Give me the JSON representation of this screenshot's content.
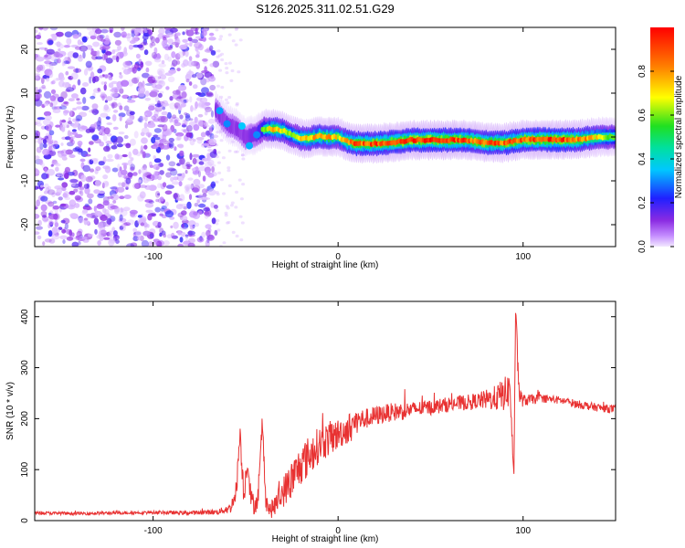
{
  "figure_title": "S126.2025.311.02.51.G29",
  "chart_data": [
    {
      "type": "heatmap",
      "title": "S126.2025.311.02.51.G29",
      "xlabel": "Height of straight line (km)",
      "ylabel": "Frequency (Hz)",
      "xlim": [
        -164,
        150
      ],
      "ylim": [
        -25,
        25
      ],
      "xticks": [
        -100,
        0,
        100
      ],
      "yticks": [
        -20,
        -10,
        0,
        10,
        20
      ],
      "colorbar": {
        "label": "Normalized spectral amplitude",
        "range": [
          0.0,
          1.0
        ],
        "ticks": [
          0.0,
          0.2,
          0.4,
          0.6,
          0.8
        ],
        "tick_labels": [
          "0.0",
          "0.2",
          "0.4",
          "0.6",
          "0.8"
        ],
        "colormap": "rainbow"
      },
      "noise_region_x": [
        -164,
        -66
      ],
      "ridge": {
        "x": [
          -66,
          -60,
          -55,
          -50,
          -45,
          -40,
          -35,
          -30,
          -25,
          -20,
          -15,
          -10,
          -5,
          0,
          5,
          10,
          20,
          30,
          40,
          50,
          60,
          70,
          80,
          90,
          100,
          110,
          120,
          130,
          140,
          150
        ],
        "freq": [
          6,
          3,
          2,
          0,
          0.5,
          1.8,
          1.8,
          1.5,
          0.5,
          -0.3,
          -0.3,
          0.2,
          0,
          0,
          -1,
          -1.5,
          -1.5,
          -1.2,
          -0.7,
          -0.7,
          -0.7,
          -0.7,
          -1.3,
          -1.3,
          -0.6,
          -0.6,
          -0.6,
          -0.6,
          0,
          0
        ],
        "amplitude": [
          0.3,
          0.3,
          0.3,
          0.3,
          0.35,
          0.6,
          0.8,
          0.7,
          0.6,
          0.7,
          0.75,
          0.8,
          0.8,
          0.7,
          0.8,
          0.9,
          0.9,
          0.9,
          0.95,
          0.95,
          0.95,
          0.9,
          0.9,
          0.9,
          0.9,
          0.95,
          0.95,
          0.85,
          0.7,
          0.6
        ]
      }
    },
    {
      "type": "line",
      "xlabel": "Height of straight line (km)",
      "ylabel": "SNR (10 * v/v)",
      "xlim": [
        -164,
        150
      ],
      "ylim": [
        0,
        430
      ],
      "xticks": [
        -100,
        0,
        100
      ],
      "yticks": [
        0,
        100,
        200,
        300,
        400
      ],
      "color": "#e83232",
      "series": [
        {
          "name": "SNR",
          "x": [
            -164,
            -140,
            -120,
            -100,
            -80,
            -65,
            -58,
            -55,
            -53,
            -51,
            -49,
            -47,
            -45,
            -43,
            -41,
            -39,
            -37,
            -35,
            -30,
            -25,
            -20,
            -15,
            -10,
            -5,
            0,
            5,
            10,
            15,
            20,
            25,
            30,
            35,
            40,
            45,
            50,
            55,
            60,
            65,
            70,
            75,
            80,
            85,
            88,
            91,
            93,
            95,
            96,
            97,
            98,
            100,
            105,
            110,
            115,
            120,
            125,
            130,
            135,
            140,
            145,
            150
          ],
          "y": [
            15,
            14,
            15,
            16,
            15,
            17,
            25,
            60,
            175,
            50,
            120,
            40,
            30,
            50,
            190,
            40,
            20,
            25,
            55,
            80,
            110,
            130,
            150,
            160,
            170,
            180,
            195,
            200,
            205,
            210,
            213,
            215,
            218,
            220,
            222,
            225,
            228,
            230,
            232,
            235,
            237,
            240,
            245,
            250,
            260,
            80,
            425,
            320,
            245,
            235,
            238,
            240,
            238,
            236,
            232,
            228,
            225,
            222,
            220,
            218
          ],
          "noise_amplitude": [
            3,
            3,
            3,
            3,
            4,
            5,
            10,
            20,
            25,
            25,
            25,
            22,
            20,
            20,
            25,
            20,
            15,
            20,
            30,
            40,
            40,
            40,
            35,
            35,
            30,
            30,
            25,
            20,
            20,
            18,
            18,
            18,
            15,
            15,
            15,
            15,
            15,
            15,
            15,
            15,
            20,
            25,
            30,
            35,
            35,
            10,
            0,
            30,
            20,
            12,
            10,
            8,
            8,
            8,
            8,
            8,
            8,
            8,
            8,
            8
          ]
        }
      ]
    }
  ]
}
